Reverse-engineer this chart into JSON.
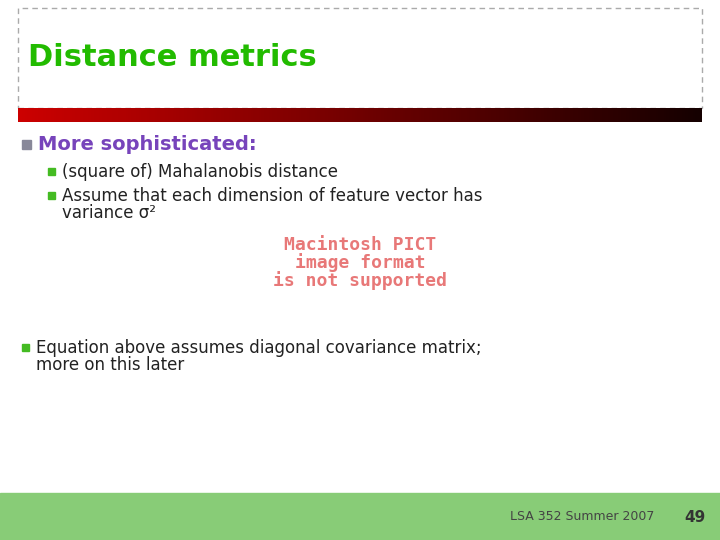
{
  "title": "Distance metrics",
  "title_color": "#22bb00",
  "title_fontsize": 22,
  "slide_bg": "#ffffff",
  "header_box_border": "#aaaaaa",
  "red_bar_color_left": "#cc0000",
  "red_bar_color_right": "#150000",
  "bullet1_text": "More sophisticated:",
  "bullet1_color": "#7744bb",
  "bullet1_fontsize": 14,
  "bullet_marker_color1": "#888899",
  "sub_bullet_color": "#222222",
  "sub_bullet_marker_color": "#44bb22",
  "sub1_text": "(square of) Mahalanobis distance",
  "sub2_line1": "Assume that each dimension of feature vector has",
  "sub2_line2": "variance σ²",
  "pict_line1": "Macintosh PICT",
  "pict_line2": "image format",
  "pict_line3": "is not supported",
  "pict_color": "#e87878",
  "pict_fontsize": 13,
  "bullet2_line1": "Equation above assumes diagonal covariance matrix;",
  "bullet2_line2": "more on this later",
  "footer_bg": "#88cc77",
  "footer_text": "LSA 352 Summer 2007",
  "footer_page": "49",
  "footer_fontsize": 9,
  "sub_fontsize": 12
}
